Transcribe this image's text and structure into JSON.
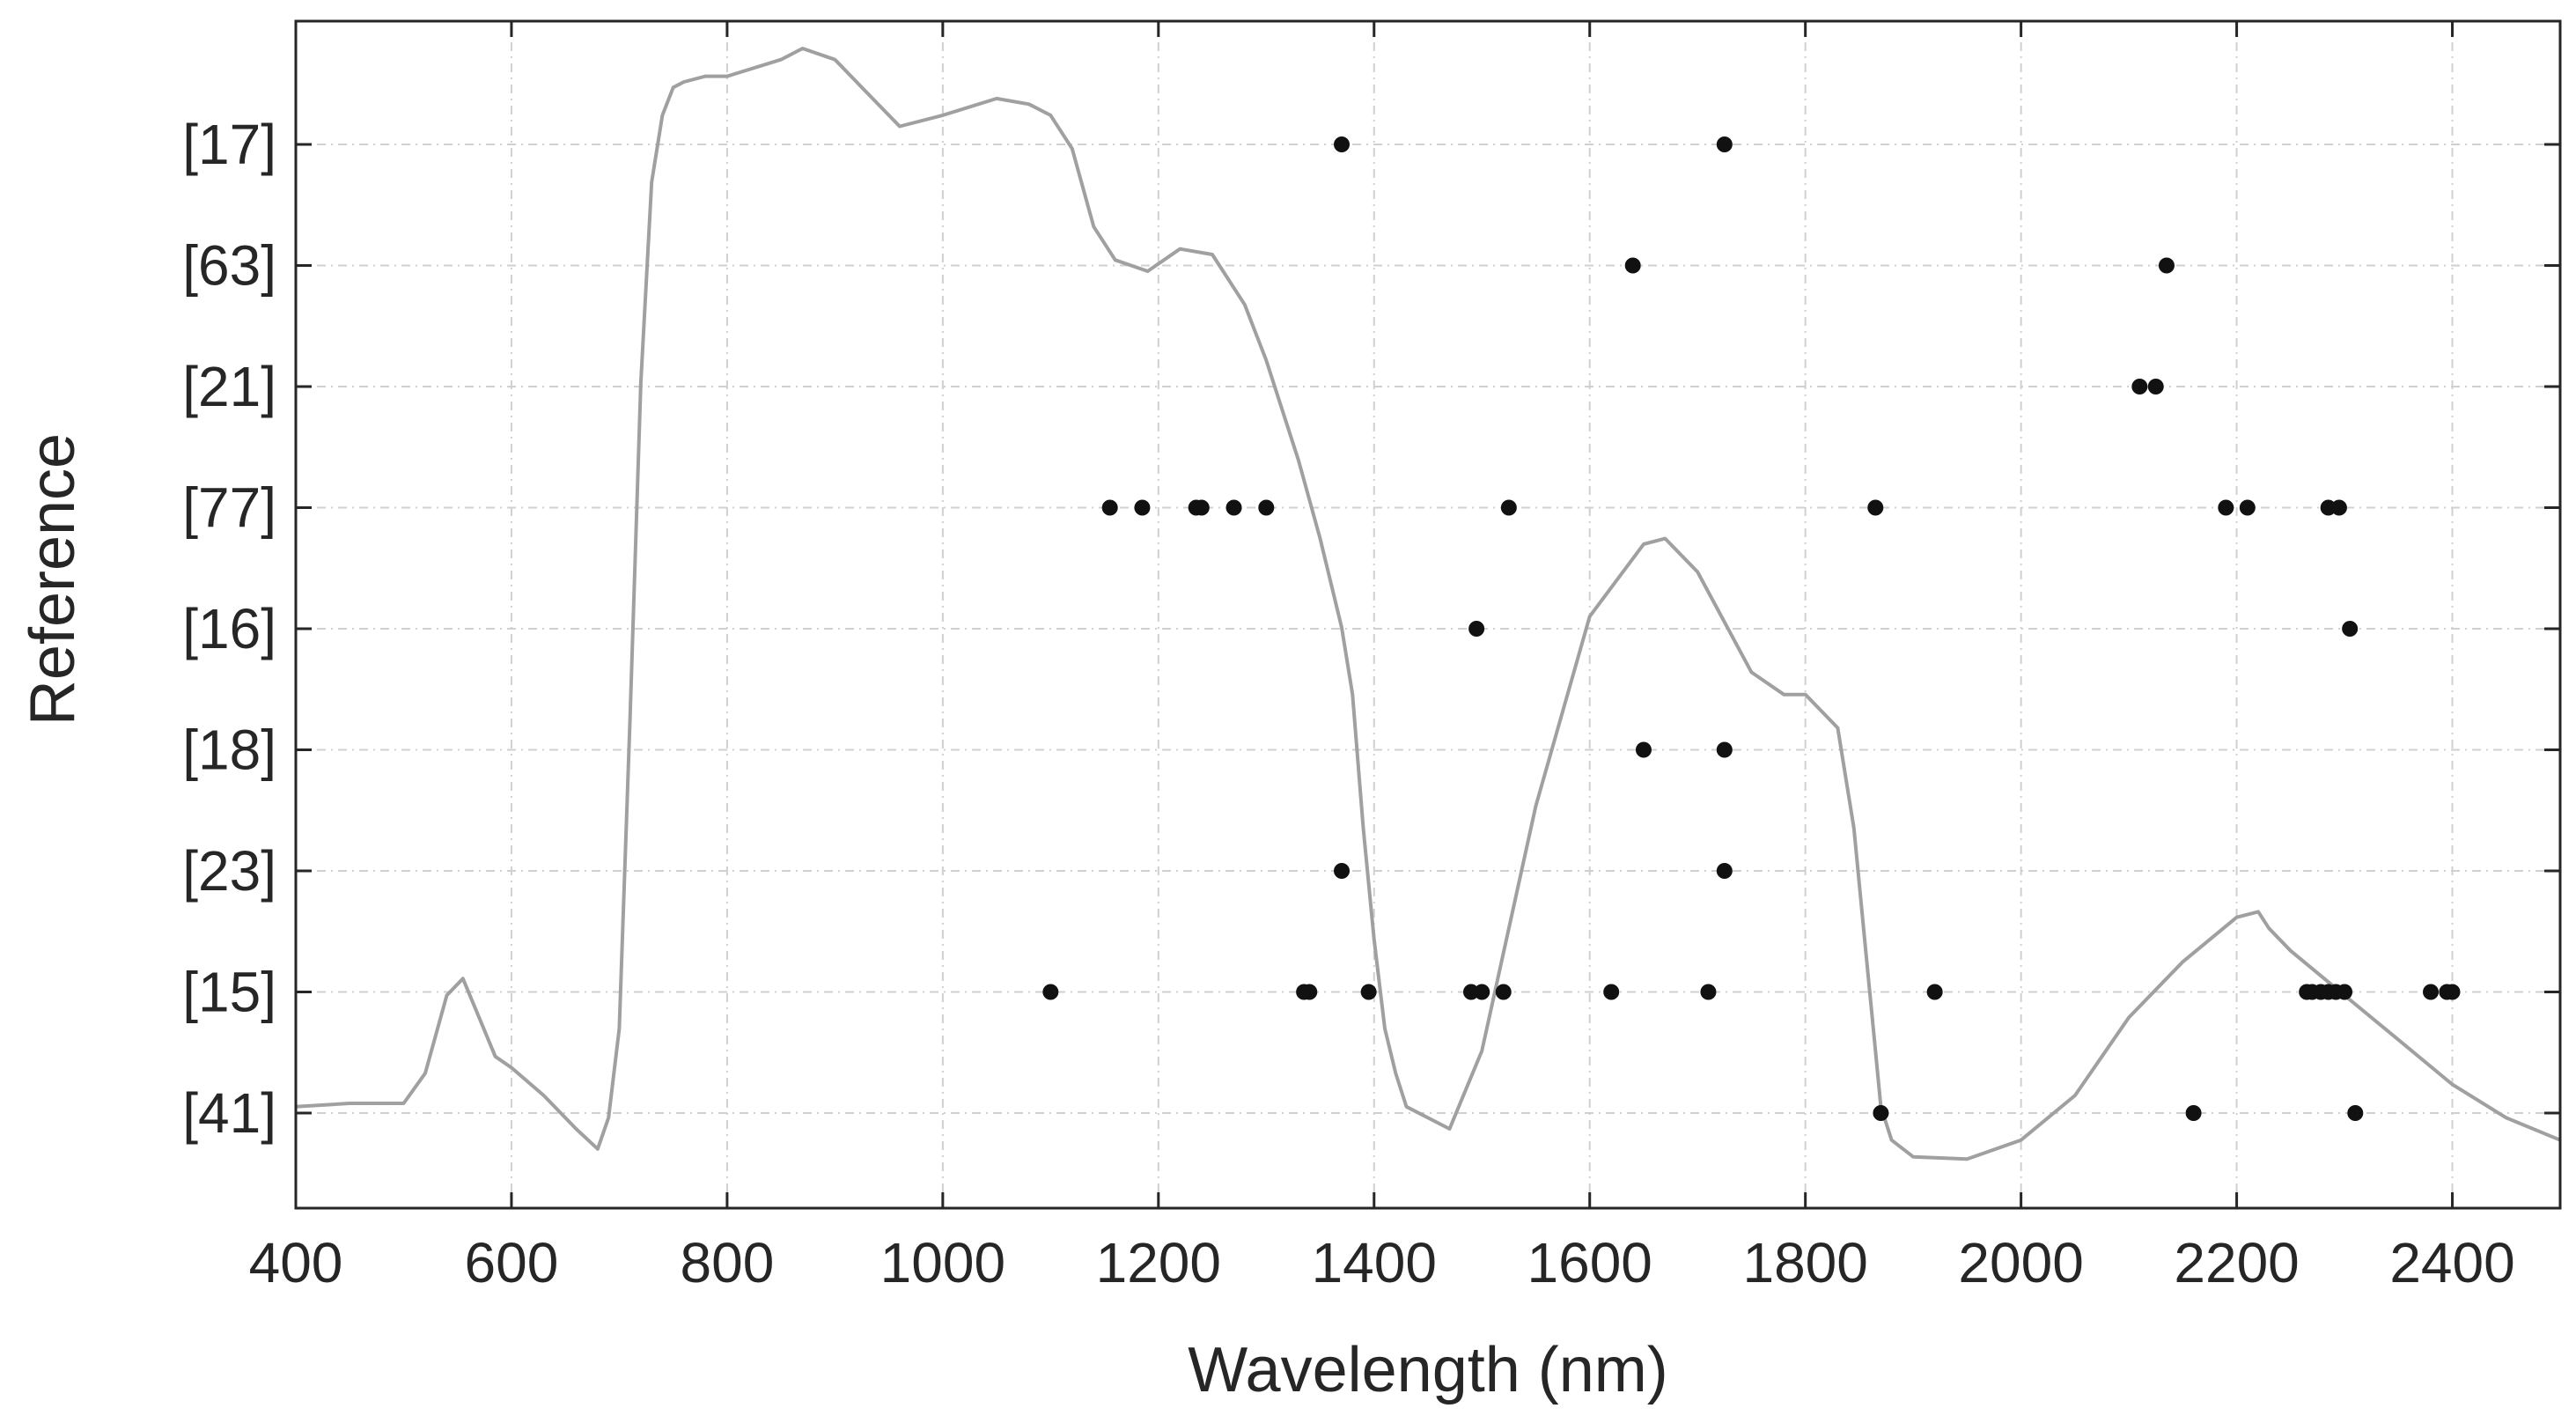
{
  "chart_data": {
    "type": "scatter",
    "xlabel": "Wavelength (nm)",
    "ylabel": "Reference",
    "xlim": [
      400,
      2500
    ],
    "x_ticks": [
      400,
      600,
      800,
      1000,
      1200,
      1400,
      1600,
      1800,
      2000,
      2200,
      2400
    ],
    "categories": [
      "[17]",
      "[63]",
      "[21]",
      "[77]",
      "[16]",
      "[18]",
      "[23]",
      "[15]",
      "[41]"
    ],
    "grid": true,
    "colors": {
      "points": "#111111",
      "spectrum": "#a0a0a0",
      "axes": "#262626"
    },
    "points": [
      {
        "category": "[17]",
        "x": [
          1370,
          1725
        ]
      },
      {
        "category": "[63]",
        "x": [
          1640,
          2135
        ]
      },
      {
        "category": "[21]",
        "x": [
          2110,
          2125
        ]
      },
      {
        "category": "[77]",
        "x": [
          1155,
          1185,
          1235,
          1240,
          1270,
          1300,
          1525,
          1865,
          2190,
          2210,
          2285,
          2295
        ]
      },
      {
        "category": "[16]",
        "x": [
          1495,
          2305
        ]
      },
      {
        "category": "[18]",
        "x": [
          1650,
          1725
        ]
      },
      {
        "category": "[23]",
        "x": [
          1370,
          1725
        ]
      },
      {
        "category": "[15]",
        "x": [
          1100,
          1335,
          1340,
          1395,
          1490,
          1500,
          1520,
          1620,
          1710,
          1920,
          2265,
          2270,
          2278,
          2285,
          2292,
          2300,
          2380,
          2395,
          2400
        ]
      },
      {
        "category": "[41]",
        "x": [
          1870,
          2160,
          2310
        ]
      }
    ],
    "reflectance_curve": {
      "x": [
        400,
        450,
        500,
        520,
        540,
        555,
        570,
        585,
        600,
        630,
        660,
        680,
        690,
        700,
        710,
        720,
        730,
        740,
        750,
        760,
        780,
        800,
        850,
        870,
        900,
        930,
        960,
        1000,
        1050,
        1080,
        1100,
        1120,
        1140,
        1160,
        1190,
        1220,
        1250,
        1280,
        1300,
        1330,
        1350,
        1370,
        1380,
        1390,
        1400,
        1410,
        1420,
        1430,
        1450,
        1470,
        1500,
        1550,
        1600,
        1650,
        1670,
        1700,
        1750,
        1780,
        1800,
        1830,
        1845,
        1855,
        1865,
        1870,
        1880,
        1900,
        1950,
        2000,
        2050,
        2100,
        2150,
        2200,
        2220,
        2230,
        2250,
        2300,
        2350,
        2400,
        2450,
        2500
      ],
      "y": [
        0.05,
        0.053,
        0.053,
        0.08,
        0.15,
        0.165,
        0.13,
        0.095,
        0.085,
        0.06,
        0.03,
        0.012,
        0.04,
        0.12,
        0.4,
        0.7,
        0.88,
        0.94,
        0.965,
        0.97,
        0.975,
        0.975,
        0.99,
        1.0,
        0.99,
        0.96,
        0.93,
        0.94,
        0.955,
        0.95,
        0.94,
        0.91,
        0.84,
        0.81,
        0.8,
        0.82,
        0.815,
        0.77,
        0.72,
        0.63,
        0.56,
        0.48,
        0.42,
        0.3,
        0.2,
        0.12,
        0.08,
        0.05,
        0.04,
        0.03,
        0.1,
        0.32,
        0.49,
        0.555,
        0.56,
        0.53,
        0.44,
        0.42,
        0.42,
        0.39,
        0.3,
        0.2,
        0.1,
        0.05,
        0.02,
        0.005,
        0.003,
        0.02,
        0.06,
        0.13,
        0.18,
        0.22,
        0.225,
        0.21,
        0.19,
        0.15,
        0.11,
        0.07,
        0.04,
        0.02
      ]
    }
  }
}
